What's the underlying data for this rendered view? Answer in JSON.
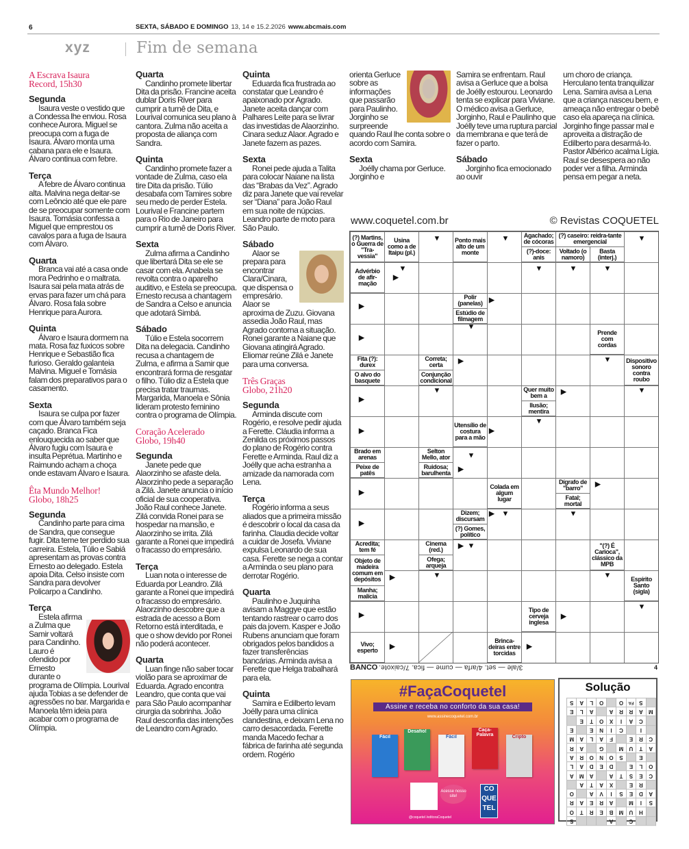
{
  "header": {
    "page_number": "6",
    "days": "SEXTA, SÁBADO E DOMINGO",
    "dates": "13, 14 e 15.2.2026",
    "site": "www.abcmais.com",
    "brand": "xyz",
    "section": "Fim de semana"
  },
  "columns": [
    [
      {
        "type": "show",
        "title": "A Escrava Isaura",
        "channel": "Record, 15h30"
      },
      {
        "type": "day",
        "label": "Segunda",
        "text": "Isaura veste o vestido que a Condessa lhe enviou. Rosa conhece Aurora. Miguel se preocupa com a fuga de Isaura. Álvaro monta uma cabana para ele e Isaura. Álvaro continua com febre."
      },
      {
        "type": "day",
        "label": "Terça",
        "text": "A febre de Álvaro continua alta. Malvina nega deitar-se com Leôncio até que ele pare de se preocupar somente com Isaura. Tomásia confessa a Miguel que emprestou os cavalos para a fuga de Isaura com Álvaro."
      },
      {
        "type": "day",
        "label": "Quarta",
        "text": "Branca vai até a casa onde mora Pedrinho e o maltrata. Isaura sai pela mata atrás de ervas para fazer um chá para Álvaro. Rosa fala sobre Henrique para Aurora."
      },
      {
        "type": "day",
        "label": "Quinta",
        "text": "Álvaro e Isaura dormem na mata. Rosa faz fuxicos sobre Henrique e Sebastião fica furioso. Geraldo galanteia Malvina. Miguel e Tomásia falam dos preparativos para o casamento."
      },
      {
        "type": "day",
        "label": "Sexta",
        "text": "Isaura se culpa por fazer com que Álvaro também seja caçado. Branca Fica enlouquecida ao saber que Álvaro fugiu com Isaura e insulta Peprétua. Martinho e Raimundo acham a choça onde estavam Álvaro e Isaura."
      },
      {
        "type": "show",
        "title": "Êta Mundo Melhor!",
        "channel": "Globo, 18h25"
      },
      {
        "type": "day",
        "label": "Segunda",
        "text": "Candinho parte para cima de Sandra, que consegue fugir. Dita teme ter perdido sua carreira. Estela, Túlio e Sabiá apresentam as provas contra Ernesto ao delegado. Estela apoia Dita. Celso insiste com Sandra para devolver Policarpo a Candinho."
      },
      {
        "type": "day",
        "label": "Terça",
        "has_photo": true,
        "text": "Estela afirma a Zulma que Samir voltará para Candinho. Lauro é ofendido por Ernesto durante o programa de Olímpia. Lourival ajuda Tobias a se defender de agressões no bar. Margarida e Manoela têm ideia para acabar com o programa de Olímpia."
      }
    ],
    [
      {
        "type": "day",
        "label": "Quarta",
        "text": "Candinho promete libertar Dita da prisão. Francine aceita dublar Doris River para cumprir a turnê de Dita, e Lourival comunica seu plano à cantora. Zulma não aceita a proposta de aliança com Sandra."
      },
      {
        "type": "day",
        "label": "Quinta",
        "text": "Candinho promete fazer a vontade de Zulma, caso ela tire Dita da prisão. Túlio desabafa com Tamires sobre seu medo de perder Estela. Lourival e Francine partem para o Rio de Janeiro para cumprir a turnê de Doris River."
      },
      {
        "type": "day",
        "label": "Sexta",
        "text": "Zulma afirma a Candinho que libertará Dita se ele se casar com ela. Anabela se revolta contra o aparelho auditivo, e Estela se preocupa. Ernesto recusa a chantagem de Sandra a Celso e anuncia que adotará Simbá."
      },
      {
        "type": "day",
        "label": "Sábado",
        "text": "Túlio e Estela socorrem Dita na delegacia. Candinho recusa a chantagem de Zulma, e afirma a Samir que encontrará forma de resgatar o filho. Túlio diz a Estela que precisa tratar traumas. Margarida, Manoela e Sônia lideram protesto feminino contra o programa de Olímpia."
      },
      {
        "type": "show",
        "title": "Coração Acelerado",
        "channel": "Globo, 19h40"
      },
      {
        "type": "day",
        "label": "Segunda",
        "text": "Janete pede que Alaorzinho se afaste dela. Alaorzinho pede a separação a Zilá. Janete anuncia o início oficial de sua cooperativa. João Raul conhece Janete. Zilá convida Ronei para se hospedar na mansão, e Alaorzinho se irrita. Zilá garante a Ronei que impedirá o fracasso do empresário."
      },
      {
        "type": "day",
        "label": "Terça",
        "text": "Luan nota o interesse de Eduarda por Leandro. Zilá garante a Ronei que impedirá o fracasso do empresário. Alaorzinho descobre que a estrada de acesso a Bom Retorno está interditada, e que o show devido por Ronei não poderá acontecer."
      },
      {
        "type": "day",
        "label": "Quarta",
        "text": "Luan finge não saber tocar violão para se aproximar de Eduarda. Agrado encontra Leandro, que conta que vai para São Paulo acompanhar cirurgia da sobrinha. João Raul desconfia das intenções de Leandro com Agrado."
      }
    ],
    [
      {
        "type": "day",
        "label": "Quinta",
        "text": "Eduarda fica frustrada ao constatar que Leandro é apaixonado por Agrado. Janete aceita dançar com Palhares Leite para se livrar das investidas de Alaorzinho. Cinara seduz Alaor. Agrado e Janete fazem as pazes."
      },
      {
        "type": "day",
        "label": "Sexta",
        "text": "Ronei pede ajuda a Talita para colocar Naiane na lista das “Brabas da Vez”. Agrado diz para Janete que vai revelar ser “Diana” para João Raul em sua noite de núpcias. Leandro parte de moto para São Paulo."
      },
      {
        "type": "day",
        "label": "Sábado",
        "has_photo": true,
        "text": "Alaor se prepara para encontrar Clara/Cinara, que dispensa o empresário. Alaor se aproxima de Zuzu. Giovana assedia João Raul, mas Agrado contorna a situação. Ronei garante a Naiane que Giovana atingirá Agrado. Eliomar reúne Zilá e Janete para uma conversa."
      },
      {
        "type": "show",
        "title": "Três Graças",
        "channel": "Globo, 21h20"
      },
      {
        "type": "day",
        "label": "Segunda",
        "text": "Arminda discute com Rogério, e resolve pedir ajuda a Ferette. Cláudia informa a Zenilda os próximos passos do plano de Rogério contra Ferette e Arminda. Raul diz a Joélly que acha estranha a amizade da namorada com Lena."
      },
      {
        "type": "day",
        "label": "Terça",
        "text": "Rogério informa a seus aliados que a primeira missão é descobrir o local da casa da farinha. Claudia decide voltar a cuidar de Josefa. Viviane expulsa Leonardo de sua casa. Ferette se nega a contar a Arminda o seu plano para derrotar Rogério."
      },
      {
        "type": "day",
        "label": "Quarta",
        "text": "Paulinho e Juquinha avisam a Maggye que estão tentando rastrear o carro dos pais da jovem. Kasper e João Rubens anunciam que foram obrigados pelos bandidos a fazer transferências bancárias. Arminda avisa a Ferette que Helga trabalhará para ela."
      },
      {
        "type": "day",
        "label": "Quinta",
        "text": "Samira e Edilberto levam Joélly para uma clínica clandestina, e deixam Lena no carro desacordada. Ferette manda Macedo fechar a fábrica de farinha até segunda ordem. Rogério"
      }
    ],
    [
      {
        "type": "cont",
        "has_photo": true,
        "text": "orienta Gerluce sobre as informações que passarão para Paulinho. Jorginho se surpreende quando Raul lhe conta sobre o acordo com Samira."
      },
      {
        "type": "day",
        "label": "Sexta",
        "text": "Joélly chama por Gerluce. Jorginho e"
      }
    ],
    [
      {
        "type": "cont",
        "text": "Samira se enfrentam. Raul avisa a Gerluce que a bolsa de Joélly estourou. Leonardo tenta se explicar para Viviane. O médico avisa a Gerluce, Jorginho, Raul e Paulinho que Joélly teve uma ruptura parcial da membrana e que terá de fazer o parto."
      },
      {
        "type": "day",
        "label": "Sábado",
        "text": "Jorginho fica emocionado ao ouvir"
      }
    ],
    [
      {
        "type": "cont",
        "text": "um choro de criança. Herculano tenta tranquilizar Lena. Samira avisa a Lena que a criança nasceu bem, e ameaça não entregar o bebê caso ela apareça na clínica. Jorginho finge passar mal e aproveita a distração de Edilberto para desarmá-lo. Pastor Albérico acalma Lígia. Raul se desespera ao não poder ver a filha. Arminda pensa em pegar a neta."
      }
    ]
  ],
  "crossword": {
    "site": "www.coquetel.com.br",
    "copyright": "© Revistas COQUETEL",
    "clues": [
      "(?) Martins, o Guerra de \"Tra-vessia\"",
      "Usina como a de Itaipu (pl.)",
      "Ponto mais alto de um monte",
      "Agachado; de cócoras",
      "(?)-doce: anis",
      "(?) caseiro: reidra-tante emergencial",
      "Voltado (o namoro)",
      "Basta (interj.)",
      "Advérbio de afir-mação",
      "Polir (panelas)",
      "Estúdio de filmagem",
      "Prende com cordas",
      "Fita (?): durex",
      "O alvo do basquete",
      "Correta; certa",
      "Conjunção condicional",
      "Dispositivo sonoro contra roubo",
      "Quer muito bem a",
      "Ilusão; mentira",
      "Utensílio de costura para a mão",
      "Brado em arenas",
      "Peixe de patês",
      "Selton Mello, ator",
      "Ruidosa; barulhenta",
      "Colada em algum lugar",
      "Dígrafo de \"barro\"",
      "Fatal; mortal",
      "Dizem; discursam",
      "(?) Gomes, político",
      "Acredita; tem fé",
      "Objeto de madeira comum em depósitos",
      "Manha; malícia",
      "Cinema (red.)",
      "Ofega; arqueja",
      "\"(?) É Carioca\", clássico da MPB",
      "Espírito Santo (sigla)",
      "Tipo de cerveja inglesa",
      "Vivo; esperto",
      "Brinca-deiras entre torcidas"
    ],
    "bank_label": "BANCO",
    "bank_text": "3/ale — set. 4/arfa — cume — fica. 7/caixote.",
    "page_number": "4"
  },
  "ad": {
    "title": "#FaçaCoquetel",
    "banner": "Assine e receba no conforto da sua casa!",
    "url": "www.assinecoquetel.com.br",
    "magazines": [
      "Fácil",
      "Desafio!",
      "Fácil",
      "Caça-Palavra",
      "Cripto"
    ],
    "cta": "Acesse nosso site!",
    "logo": "CO QUE TEL",
    "social": "@coquetel   /editoraCoquetel",
    "colors": {
      "top": "#f7b42a",
      "bottom": "#e2208f",
      "brand": "#5b2b87"
    }
  },
  "solution": {
    "title": "Solução",
    "rows": [
      [
        "",
        "",
        "C",
        "",
        "A",
        "",
        "",
        "",
        "S"
      ],
      [
        "",
        "H",
        "U",
        "M",
        "B",
        "E",
        "R",
        "T",
        "O"
      ],
      [
        "S",
        "I",
        "M",
        "",
        "A",
        "R",
        "E",
        "A",
        "R"
      ],
      [
        "A",
        "D",
        "E",
        "S",
        "I",
        "V",
        "A",
        "",
        "O"
      ],
      [
        "",
        "R",
        "E",
        "",
        "X",
        "A",
        "T",
        "A",
        ""
      ],
      [
        "C",
        "E",
        "S",
        "T",
        "A",
        "",
        "A",
        "M",
        "A"
      ],
      [
        "O",
        "L",
        "E",
        "",
        "D",
        "E",
        "D",
        "A",
        "L"
      ],
      [
        "",
        "E",
        "",
        "S",
        "O",
        "N",
        "O",
        "R",
        "A"
      ],
      [
        "A",
        "T",
        "U",
        "M",
        "",
        "G",
        "",
        "A",
        "R"
      ],
      [
        "C",
        "R",
        "E",
        "",
        "F",
        "A",
        "L",
        "A",
        "M"
      ],
      [
        "",
        "I",
        "",
        "C",
        "I",
        "N",
        "E",
        "",
        "E"
      ],
      [
        "",
        "C",
        "A",
        "I",
        "X",
        "O",
        "T",
        "E",
        ""
      ],
      [
        "M",
        "A",
        "R",
        "R",
        "A",
        "",
        "A",
        "L",
        "E"
      ],
      [
        "",
        "S",
        "FA",
        "O",
        "",
        "O",
        "L",
        "A",
        "S"
      ]
    ]
  }
}
